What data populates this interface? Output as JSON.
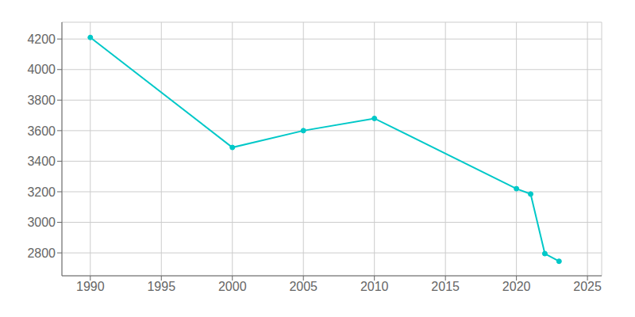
{
  "chart_data": {
    "type": "line",
    "x": [
      1990,
      2000,
      2005,
      2010,
      2020,
      2021,
      2022,
      2023
    ],
    "values": [
      4210,
      3490,
      3600,
      3680,
      3220,
      3185,
      2795,
      2745
    ],
    "color": "#00C8C8",
    "marker": "circle",
    "xlim": [
      1988,
      2026
    ],
    "xticks": [
      1990,
      1995,
      2000,
      2005,
      2010,
      2015,
      2020,
      2025
    ],
    "ylim": [
      2650,
      4310
    ],
    "yticks": [
      2800,
      3000,
      3200,
      3400,
      3600,
      3800,
      4000,
      4200
    ],
    "grid": true
  }
}
